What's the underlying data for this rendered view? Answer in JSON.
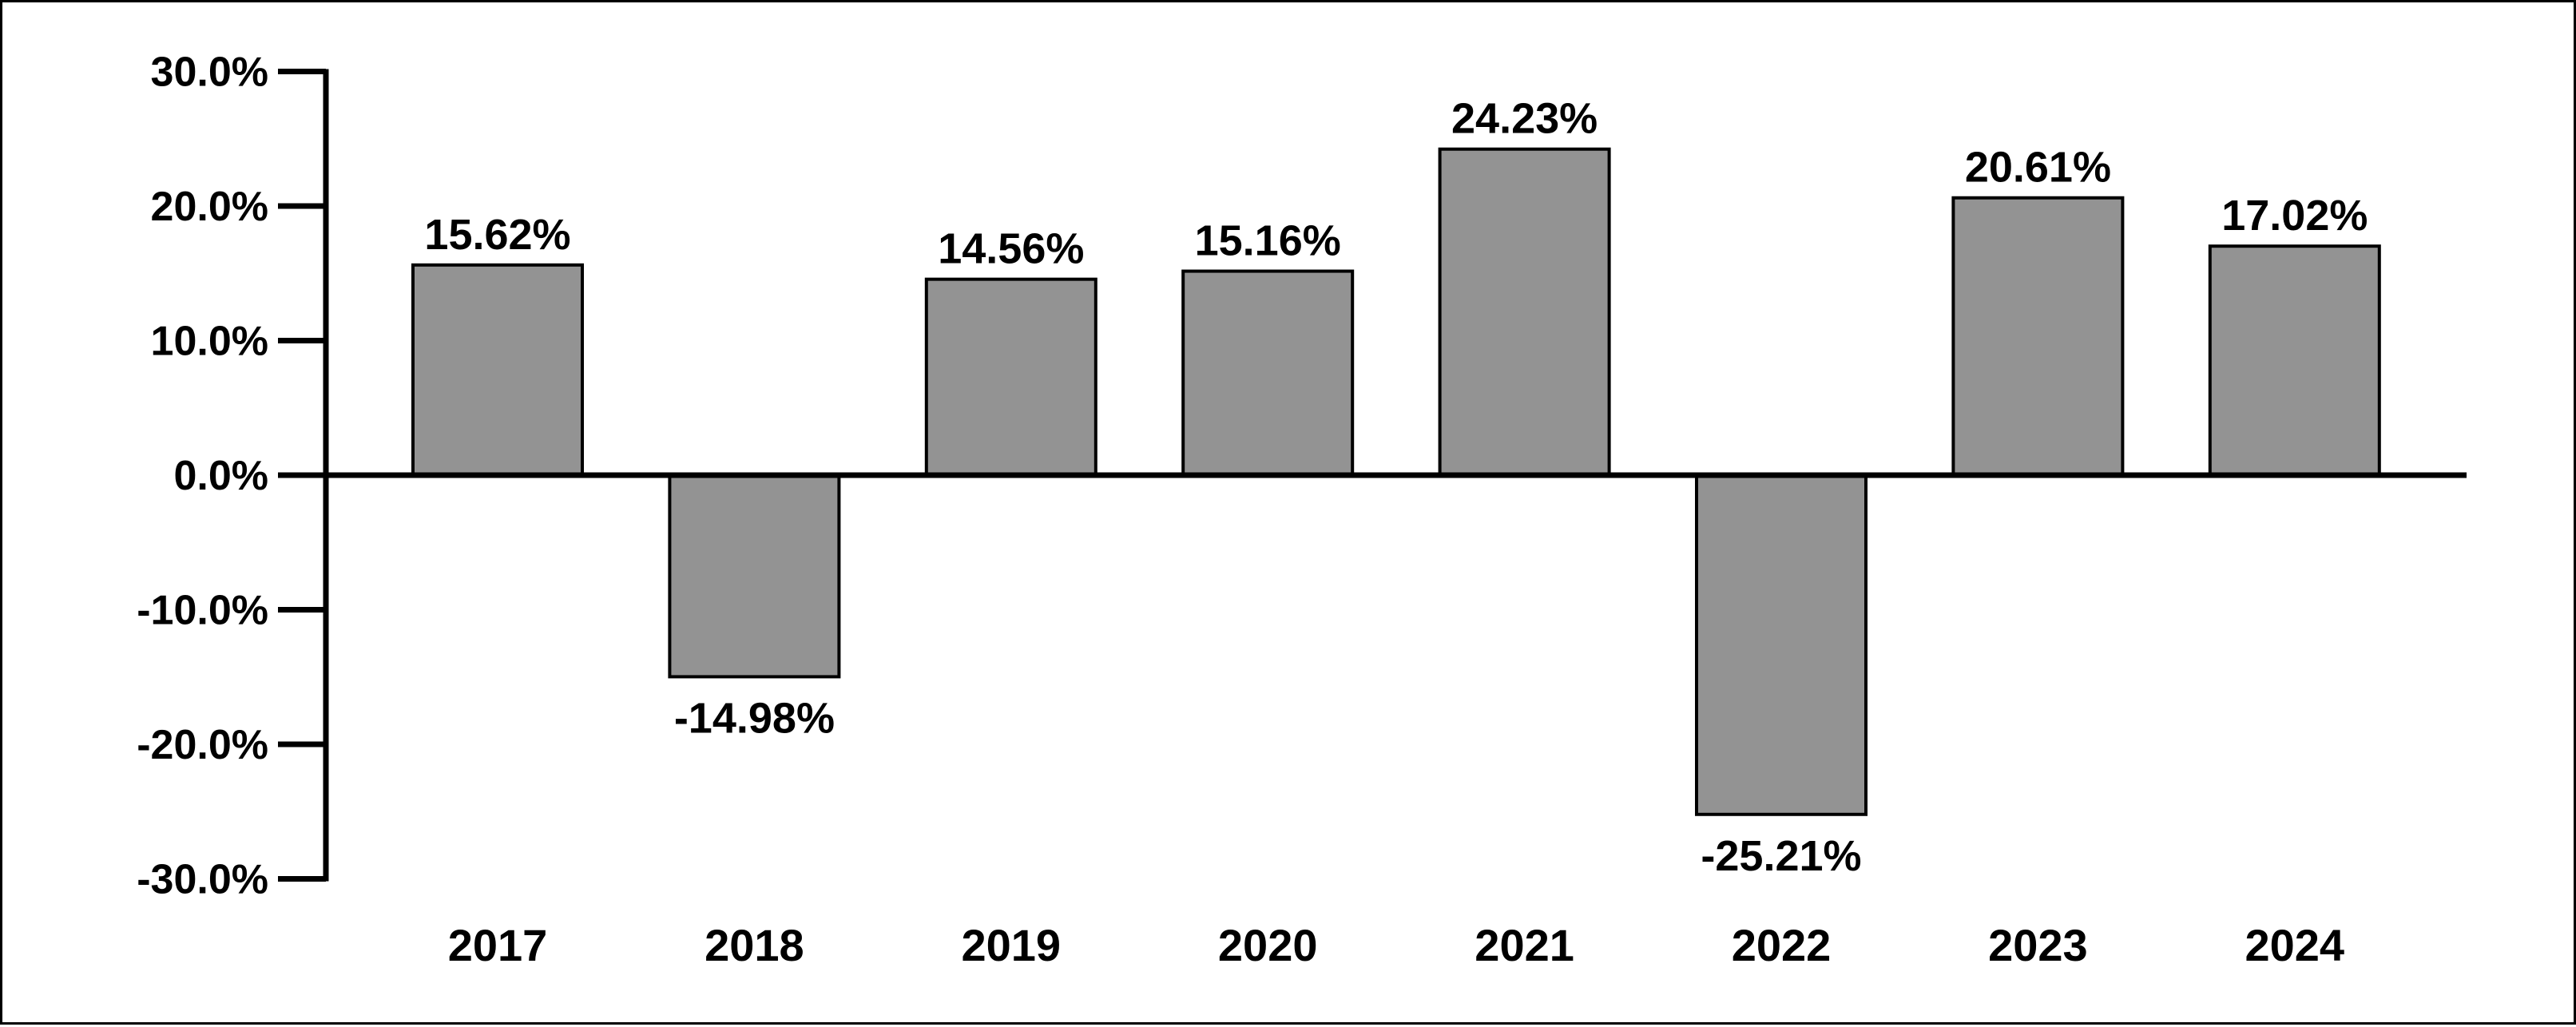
{
  "chart_data": {
    "type": "bar",
    "categories": [
      "2017",
      "2018",
      "2019",
      "2020",
      "2021",
      "2022",
      "2023",
      "2024"
    ],
    "values": [
      15.62,
      -14.98,
      14.56,
      15.16,
      24.23,
      -25.21,
      20.61,
      17.02
    ],
    "data_labels": [
      "15.62%",
      "-14.98%",
      "14.56%",
      "15.16%",
      "24.23%",
      "-25.21%",
      "20.61%",
      "17.02%"
    ],
    "ylim": [
      -30,
      30
    ],
    "y_ticks": [
      30,
      20,
      10,
      0,
      -10,
      -20,
      -30
    ],
    "y_tick_labels": [
      "30.0%",
      "20.0%",
      "10.0%",
      "0.0%",
      "-10.0%",
      "-20.0%",
      "-30.0%"
    ],
    "title": "",
    "xlabel": "",
    "ylabel": "",
    "grid": false,
    "legend": "none",
    "colors": {
      "bar_fill": "#939393",
      "bar_stroke": "#000000",
      "axis": "#000000",
      "text": "#000000",
      "background": "#ffffff"
    }
  }
}
